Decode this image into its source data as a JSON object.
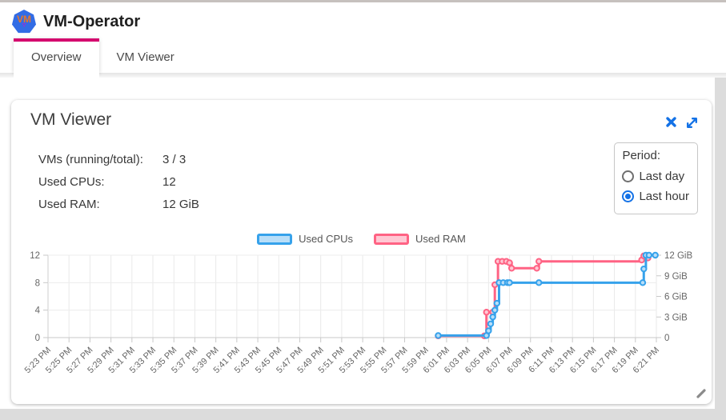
{
  "header": {
    "title": "VM-Operator",
    "logo_text": "VM"
  },
  "tabs": [
    {
      "label": "Overview",
      "active": true
    },
    {
      "label": "VM Viewer",
      "active": false
    }
  ],
  "card": {
    "title": "VM Viewer",
    "stats": [
      {
        "label": "VMs (running/total):",
        "value": "3 / 3"
      },
      {
        "label": "Used CPUs:",
        "value": "12"
      },
      {
        "label": "Used RAM:",
        "value": "12 GiB"
      }
    ],
    "period": {
      "label": "Period:",
      "options": [
        {
          "label": "Last day",
          "selected": false
        },
        {
          "label": "Last hour",
          "selected": true
        }
      ]
    }
  },
  "colors": {
    "accent": "#d4056e",
    "icon_blue": "#1472e6",
    "cpu_line": "#36A2EB",
    "cpu_fill": "#B9DEF8",
    "ram_line": "#FF6384",
    "ram_fill": "#FFC8D4"
  },
  "chart_data": {
    "type": "line",
    "stepped": true,
    "x_tick_labels": [
      "5:23 PM",
      "5:25 PM",
      "5:27 PM",
      "5:29 PM",
      "5:31 PM",
      "5:33 PM",
      "5:35 PM",
      "5:37 PM",
      "5:39 PM",
      "5:41 PM",
      "5:43 PM",
      "5:45 PM",
      "5:47 PM",
      "5:49 PM",
      "5:51 PM",
      "5:53 PM",
      "5:55 PM",
      "5:57 PM",
      "5:59 PM",
      "6:01 PM",
      "6:03 PM",
      "6:05 PM",
      "6:07 PM",
      "6:09 PM",
      "6:11 PM",
      "6:13 PM",
      "6:15 PM",
      "6:17 PM",
      "6:19 PM",
      "6:21 PM"
    ],
    "x_tick_interval_minutes": 2,
    "x_range_minutes": [
      0,
      58
    ],
    "left_axis": {
      "title": "Used CPUs",
      "ticks": [
        0,
        4,
        8,
        12
      ],
      "range": [
        0,
        12
      ]
    },
    "right_axis": {
      "title": "Used RAM",
      "tick_labels": [
        "0",
        "3 GiB",
        "6 GiB",
        "9 GiB",
        "12 GiB"
      ],
      "tick_values": [
        0,
        3,
        6,
        9,
        12
      ],
      "range": [
        0,
        12
      ]
    },
    "grid": {
      "vertical": true,
      "horizontal_on_left_ticks": true
    },
    "legend_position": "top-center",
    "series": [
      {
        "name": "Used CPUs",
        "axis": "left",
        "color": "#36A2EB",
        "fill": "#B9DEF8",
        "points": [
          {
            "m": 37.2,
            "v": 0.3
          },
          {
            "m": 41.8,
            "v": 0.3
          },
          {
            "m": 42.0,
            "v": 1
          },
          {
            "m": 42.2,
            "v": 2
          },
          {
            "m": 42.4,
            "v": 3
          },
          {
            "m": 42.6,
            "v": 4
          },
          {
            "m": 42.8,
            "v": 5
          },
          {
            "m": 43.0,
            "v": 8
          },
          {
            "m": 43.4,
            "v": 8
          },
          {
            "m": 43.8,
            "v": 8
          },
          {
            "m": 44.0,
            "v": 8
          },
          {
            "m": 46.8,
            "v": 8
          },
          {
            "m": 56.7,
            "v": 8
          },
          {
            "m": 56.8,
            "v": 10
          },
          {
            "m": 57.0,
            "v": 12
          },
          {
            "m": 57.3,
            "v": 12
          },
          {
            "m": 57.9,
            "v": 12
          }
        ]
      },
      {
        "name": "Used RAM",
        "axis": "right",
        "unit": "GiB",
        "color": "#FF6384",
        "fill": "#FFC8D4",
        "points": [
          {
            "m": 37.2,
            "v": 0.25
          },
          {
            "m": 41.6,
            "v": 0.25
          },
          {
            "m": 41.8,
            "v": 3.7
          },
          {
            "m": 42.4,
            "v": 3.7
          },
          {
            "m": 42.6,
            "v": 7.7
          },
          {
            "m": 42.9,
            "v": 11.1
          },
          {
            "m": 43.3,
            "v": 11.1
          },
          {
            "m": 43.7,
            "v": 11.1
          },
          {
            "m": 44.0,
            "v": 10.9
          },
          {
            "m": 44.2,
            "v": 10.1
          },
          {
            "m": 46.6,
            "v": 10.1
          },
          {
            "m": 46.8,
            "v": 11.1
          },
          {
            "m": 56.6,
            "v": 11.3
          },
          {
            "m": 56.8,
            "v": 11.9
          },
          {
            "m": 57.2,
            "v": 11.6
          }
        ]
      }
    ]
  }
}
